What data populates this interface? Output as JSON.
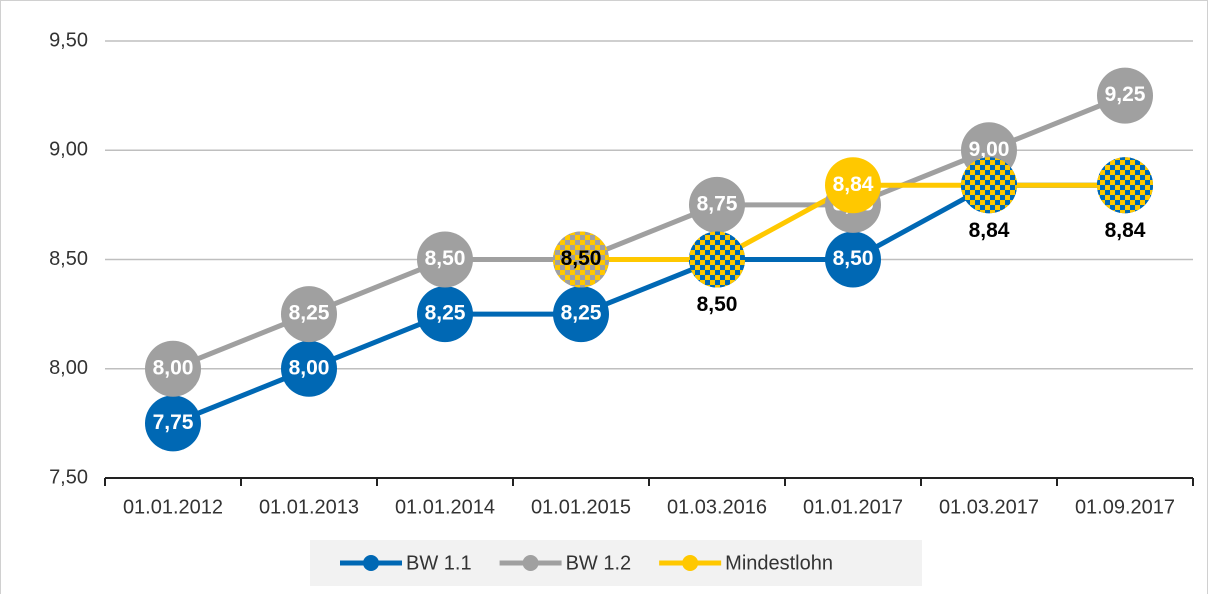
{
  "chart_data": {
    "type": "line",
    "categories": [
      "01.01.2012",
      "01.01.2013",
      "01.01.2014",
      "01.01.2015",
      "01.03.2016",
      "01.01.2017",
      "01.03.2017",
      "01.09.2017"
    ],
    "series": [
      {
        "name": "BW 1.1",
        "color": "#0068b4",
        "values": [
          7.75,
          8.0,
          8.25,
          8.25,
          8.5,
          8.5,
          8.84,
          8.84
        ],
        "value_labels": [
          "7,75",
          "8,00",
          "8,25",
          "8,25",
          "8,50",
          "8,50",
          "8,84",
          "8,84"
        ]
      },
      {
        "name": "BW 1.2",
        "color": "#a0a0a0",
        "values": [
          8.0,
          8.25,
          8.5,
          8.5,
          8.75,
          8.75,
          9.0,
          9.25
        ],
        "value_labels": [
          "8,00",
          "8,25",
          "8,50",
          "8,50",
          "8,75",
          "8,75",
          "9,00",
          "9,25"
        ]
      },
      {
        "name": "Mindestlohn",
        "color": "#ffc800",
        "values": [
          null,
          null,
          null,
          8.5,
          8.5,
          8.84,
          8.84,
          8.84
        ],
        "value_labels": [
          null,
          null,
          null,
          "8,50",
          "8,50",
          "8,84",
          "8,84",
          "8,84"
        ]
      }
    ],
    "ylim": [
      7.5,
      9.5
    ],
    "yticks": [
      {
        "value": 7.5,
        "label": "7,50"
      },
      {
        "value": 8.0,
        "label": "8,00"
      },
      {
        "value": 8.5,
        "label": "8,50"
      },
      {
        "value": 9.0,
        "label": "9,00"
      },
      {
        "value": 9.5,
        "label": "9,50"
      }
    ],
    "grid": true,
    "legend": "bottom"
  }
}
